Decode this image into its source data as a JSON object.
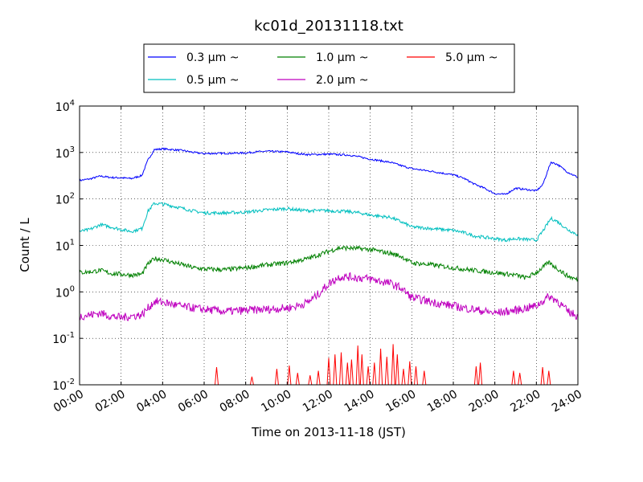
{
  "chart_data": {
    "type": "line",
    "title": "kc01d_20131118.txt",
    "xlabel": "Time on 2013-11-18 (JST)",
    "ylabel": "Count / L",
    "yscale": "log",
    "ylim": [
      0.01,
      10000
    ],
    "xlim": [
      0,
      24
    ],
    "grid": true,
    "legend_position": "top-center",
    "x_ticks": [
      "00:00",
      "02:00",
      "04:00",
      "06:00",
      "08:00",
      "10:00",
      "12:00",
      "14:00",
      "16:00",
      "18:00",
      "20:00",
      "22:00",
      "24:00"
    ],
    "y_ticks": [
      {
        "base": "10",
        "exp": "-2",
        "value": 0.01
      },
      {
        "base": "10",
        "exp": "-1",
        "value": 0.1
      },
      {
        "base": "10",
        "exp": "0",
        "value": 1
      },
      {
        "base": "10",
        "exp": "1",
        "value": 10
      },
      {
        "base": "10",
        "exp": "2",
        "value": 100
      },
      {
        "base": "10",
        "exp": "3",
        "value": 1000
      },
      {
        "base": "10",
        "exp": "4",
        "value": 10000
      }
    ],
    "series": [
      {
        "name": "0.3 μm ~",
        "color": "#0000ff",
        "noise": 0.02,
        "points": [
          [
            0,
            250
          ],
          [
            0.5,
            270
          ],
          [
            1,
            310
          ],
          [
            1.5,
            290
          ],
          [
            2,
            285
          ],
          [
            2.5,
            275
          ],
          [
            3,
            320
          ],
          [
            3.3,
            700
          ],
          [
            3.6,
            1150
          ],
          [
            4,
            1200
          ],
          [
            4.5,
            1150
          ],
          [
            5,
            1100
          ],
          [
            5.5,
            1000
          ],
          [
            6,
            950
          ],
          [
            7,
            960
          ],
          [
            8,
            980
          ],
          [
            8.5,
            1030
          ],
          [
            9,
            1060
          ],
          [
            10,
            1030
          ],
          [
            10.5,
            950
          ],
          [
            11,
            900
          ],
          [
            12,
            920
          ],
          [
            13,
            880
          ],
          [
            13.5,
            800
          ],
          [
            14,
            720
          ],
          [
            15,
            610
          ],
          [
            15.5,
            520
          ],
          [
            16,
            450
          ],
          [
            17,
            390
          ],
          [
            18,
            330
          ],
          [
            18.5,
            280
          ],
          [
            19,
            210
          ],
          [
            19.5,
            170
          ],
          [
            20,
            130
          ],
          [
            20.5,
            125
          ],
          [
            21,
            170
          ],
          [
            21.5,
            160
          ],
          [
            22,
            150
          ],
          [
            22.3,
            200
          ],
          [
            22.7,
            620
          ],
          [
            23,
            560
          ],
          [
            23.5,
            380
          ],
          [
            24,
            290
          ]
        ]
      },
      {
        "name": "0.5 μm ~",
        "color": "#00bfbf",
        "noise": 0.035,
        "points": [
          [
            0,
            20
          ],
          [
            0.5,
            22
          ],
          [
            1,
            28
          ],
          [
            1.5,
            25
          ],
          [
            2,
            22
          ],
          [
            2.5,
            20
          ],
          [
            3,
            23
          ],
          [
            3.3,
            55
          ],
          [
            3.6,
            80
          ],
          [
            4,
            78
          ],
          [
            4.5,
            70
          ],
          [
            5,
            62
          ],
          [
            5.5,
            55
          ],
          [
            6,
            50
          ],
          [
            7,
            50
          ],
          [
            8,
            52
          ],
          [
            9,
            58
          ],
          [
            10,
            62
          ],
          [
            10.5,
            58
          ],
          [
            11,
            56
          ],
          [
            12,
            56
          ],
          [
            13,
            53
          ],
          [
            13.5,
            50
          ],
          [
            14,
            45
          ],
          [
            15,
            40
          ],
          [
            15.5,
            32
          ],
          [
            16,
            25
          ],
          [
            17,
            23
          ],
          [
            18,
            21
          ],
          [
            18.5,
            19
          ],
          [
            19,
            16
          ],
          [
            20,
            14
          ],
          [
            20.5,
            13
          ],
          [
            21,
            14
          ],
          [
            22,
            13
          ],
          [
            22.3,
            20
          ],
          [
            22.7,
            38
          ],
          [
            23,
            33
          ],
          [
            23.5,
            22
          ],
          [
            24,
            17
          ]
        ]
      },
      {
        "name": "1.0 μm ~",
        "color": "#008000",
        "noise": 0.05,
        "points": [
          [
            0,
            2.6
          ],
          [
            0.5,
            2.7
          ],
          [
            1,
            2.9
          ],
          [
            1.5,
            2.5
          ],
          [
            2,
            2.4
          ],
          [
            2.5,
            2.3
          ],
          [
            3,
            2.4
          ],
          [
            3.3,
            4.0
          ],
          [
            3.6,
            5.2
          ],
          [
            4,
            5.0
          ],
          [
            4.5,
            4.3
          ],
          [
            5,
            3.8
          ],
          [
            5.5,
            3.3
          ],
          [
            6,
            3.1
          ],
          [
            7,
            3.0
          ],
          [
            8,
            3.3
          ],
          [
            9,
            3.8
          ],
          [
            10,
            4.2
          ],
          [
            10.5,
            4.7
          ],
          [
            11,
            5.2
          ],
          [
            12,
            7.5
          ],
          [
            12.5,
            8.8
          ],
          [
            13,
            8.8
          ],
          [
            14,
            8.2
          ],
          [
            15,
            6.7
          ],
          [
            15.5,
            5.8
          ],
          [
            16,
            4.2
          ],
          [
            17,
            3.8
          ],
          [
            18,
            3.3
          ],
          [
            19,
            2.9
          ],
          [
            20,
            2.6
          ],
          [
            21,
            2.3
          ],
          [
            21.5,
            2.0
          ],
          [
            22,
            2.6
          ],
          [
            22.6,
            4.3
          ],
          [
            23,
            3.2
          ],
          [
            23.5,
            2.2
          ],
          [
            24,
            1.8
          ]
        ]
      },
      {
        "name": "2.0 μm ~",
        "color": "#bf00bf",
        "noise": 0.09,
        "points": [
          [
            0,
            0.3
          ],
          [
            0.5,
            0.32
          ],
          [
            1,
            0.35
          ],
          [
            1.5,
            0.3
          ],
          [
            2,
            0.28
          ],
          [
            2.5,
            0.3
          ],
          [
            3,
            0.32
          ],
          [
            3.3,
            0.45
          ],
          [
            3.6,
            0.62
          ],
          [
            4,
            0.6
          ],
          [
            5,
            0.48
          ],
          [
            6,
            0.42
          ],
          [
            7,
            0.38
          ],
          [
            8,
            0.4
          ],
          [
            9,
            0.42
          ],
          [
            10,
            0.45
          ],
          [
            10.5,
            0.5
          ],
          [
            11,
            0.6
          ],
          [
            11.5,
            0.9
          ],
          [
            12,
            1.5
          ],
          [
            12.5,
            2.1
          ],
          [
            13,
            2.1
          ],
          [
            14,
            1.9
          ],
          [
            15,
            1.5
          ],
          [
            15.5,
            1.2
          ],
          [
            16,
            0.75
          ],
          [
            17,
            0.6
          ],
          [
            18,
            0.5
          ],
          [
            18.5,
            0.45
          ],
          [
            19,
            0.42
          ],
          [
            19.5,
            0.38
          ],
          [
            20,
            0.35
          ],
          [
            21,
            0.4
          ],
          [
            22,
            0.5
          ],
          [
            22.6,
            0.8
          ],
          [
            23,
            0.65
          ],
          [
            23.5,
            0.38
          ],
          [
            24,
            0.3
          ]
        ]
      },
      {
        "name": "5.0 μm ~",
        "color": "#ff0000",
        "noise": 0,
        "points": []
      }
    ],
    "spikes_5um": [
      [
        6.6,
        0.024
      ],
      [
        8.3,
        0.015
      ],
      [
        9.5,
        0.022
      ],
      [
        10.1,
        0.026
      ],
      [
        10.5,
        0.018
      ],
      [
        11.1,
        0.016
      ],
      [
        11.5,
        0.02
      ],
      [
        12.0,
        0.038
      ],
      [
        12.3,
        0.045
      ],
      [
        12.6,
        0.05
      ],
      [
        12.9,
        0.03
      ],
      [
        13.1,
        0.035
      ],
      [
        13.4,
        0.07
      ],
      [
        13.6,
        0.045
      ],
      [
        13.9,
        0.025
      ],
      [
        14.2,
        0.03
      ],
      [
        14.5,
        0.06
      ],
      [
        14.8,
        0.04
      ],
      [
        15.1,
        0.075
      ],
      [
        15.3,
        0.045
      ],
      [
        15.6,
        0.022
      ],
      [
        15.9,
        0.032
      ],
      [
        16.2,
        0.025
      ],
      [
        16.6,
        0.02
      ],
      [
        19.1,
        0.025
      ],
      [
        19.3,
        0.03
      ],
      [
        20.9,
        0.02
      ],
      [
        21.2,
        0.018
      ],
      [
        22.3,
        0.024
      ],
      [
        22.6,
        0.02
      ]
    ]
  }
}
